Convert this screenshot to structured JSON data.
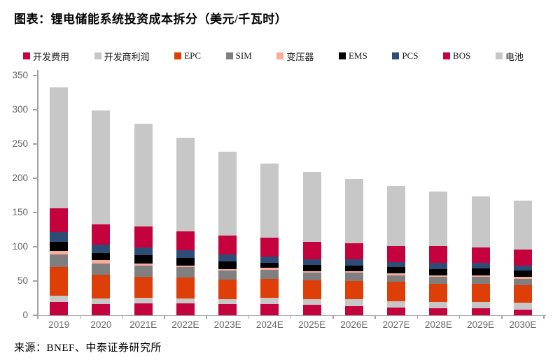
{
  "title": "图表：锂电储能系统投资成本拆分（美元/千瓦时）",
  "source": "来源：BNEF、中泰证券研究所",
  "chart_data": {
    "type": "bar",
    "stacked": true,
    "title": "锂电储能系统投资成本拆分",
    "unit": "美元/千瓦时",
    "legend_position": "top",
    "grid": false,
    "ylim": [
      0,
      350
    ],
    "ytick_step": 50,
    "ytick_labels": [
      "0",
      "50",
      "100",
      "150",
      "200",
      "250",
      "300",
      "350"
    ],
    "categories": [
      "2019",
      "2020",
      "2021E",
      "2022E",
      "2023E",
      "2024E",
      "2025E",
      "2026E",
      "2027E",
      "2028E",
      "2029E",
      "2030E"
    ],
    "series": [
      {
        "name": "开发费用",
        "color": "#C4033E",
        "values": [
          19,
          16,
          17,
          17,
          16,
          16,
          15,
          13,
          11,
          10,
          10,
          8
        ]
      },
      {
        "name": "开发商利润",
        "color": "#C7C7C7",
        "values": [
          10,
          9,
          9,
          8,
          8,
          10,
          9,
          10,
          9,
          9,
          9,
          10
        ]
      },
      {
        "name": "EPC",
        "color": "#DE3E07",
        "values": [
          41,
          34,
          30,
          30,
          28,
          27,
          27,
          27,
          29,
          27,
          27,
          26
        ]
      },
      {
        "name": "SIM",
        "color": "#7F7F7F",
        "values": [
          19,
          17,
          16,
          15,
          13,
          13,
          11,
          12,
          9,
          10,
          10,
          9
        ]
      },
      {
        "name": "变压器",
        "color": "#F9AC9B",
        "values": [
          5,
          5,
          4,
          3,
          2,
          3,
          2,
          2,
          3,
          2,
          2,
          3
        ]
      },
      {
        "name": "EMS",
        "color": "#000000",
        "values": [
          13,
          10,
          12,
          11,
          12,
          8,
          10,
          9,
          9,
          9,
          10,
          9
        ]
      },
      {
        "name": "PCS",
        "color": "#2E4D76",
        "values": [
          14,
          12,
          11,
          11,
          10,
          9,
          8,
          9,
          8,
          10,
          9,
          8
        ]
      },
      {
        "name": "BOS",
        "color": "#C4033E",
        "values": [
          35,
          30,
          31,
          28,
          27,
          27,
          25,
          23,
          23,
          24,
          22,
          23
        ]
      },
      {
        "name": "电池",
        "color": "#C7C7C7",
        "values": [
          177,
          166,
          150,
          136,
          123,
          108,
          102,
          94,
          88,
          80,
          75,
          71
        ]
      }
    ],
    "stack_totals": [
      333,
      299,
      280,
      259,
      239,
      221,
      209,
      199,
      189,
      181,
      174,
      167
    ]
  }
}
